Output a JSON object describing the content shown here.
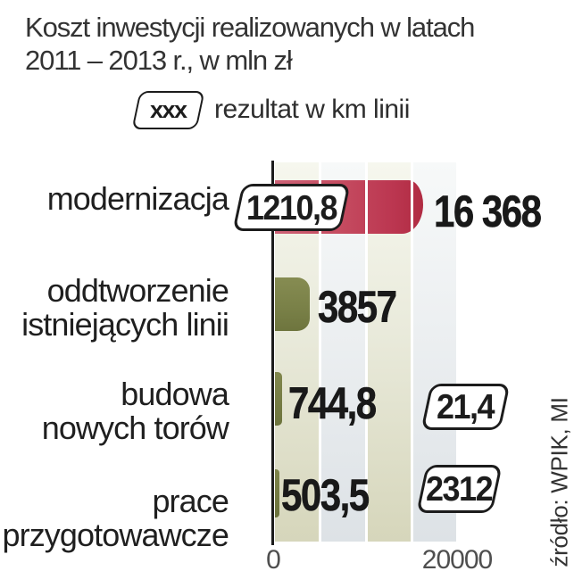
{
  "title": {
    "line1": "Koszt inwestycji realizowanych w latach",
    "line2": "2011 – 2013 r., w mln zł"
  },
  "legend": {
    "box_label": "xxx",
    "label": "rezultat w km linii"
  },
  "source": "źródło: WPIK, MI",
  "chart_data": {
    "type": "bar",
    "orientation": "horizontal",
    "title": "Koszt inwestycji realizowanych w latach 2011 – 2013 r., w mln zł",
    "value_unit": "mln zł",
    "secondary_unit": "km linii",
    "xlim": [
      0,
      20000
    ],
    "x_tick_labels": [
      "0",
      "20000"
    ],
    "gridlines": "vertical bands every 5000",
    "legend_note": "boxed values = rezultat w km linii",
    "rows": [
      {
        "category": "modernizacja",
        "label_line1": "modernizacja",
        "label_line2": "",
        "value": 16368,
        "value_label": "16 368",
        "km_result": "1210,8",
        "bar_color": "red"
      },
      {
        "category": "oddtworzenie istniejących linii",
        "label_line1": "oddtworzenie",
        "label_line2": "istniejących linii",
        "value": 3857,
        "value_label": "3857",
        "km_result": "",
        "bar_color": "olive"
      },
      {
        "category": "budowa nowych torów",
        "label_line1": "budowa",
        "label_line2": "nowych torów",
        "value": 744.8,
        "value_label": "744,8",
        "km_result": "21,4",
        "bar_color": "olive"
      },
      {
        "category": "prace przygotowawcze",
        "label_line1": "prace",
        "label_line2": "przygotowawcze",
        "value": 503.5,
        "value_label": "503,5",
        "km_result": "2312",
        "bar_color": "olive"
      }
    ],
    "colors": {
      "bar_red_light": "#cd6276",
      "bar_red_dark": "#b02b42",
      "bar_olive": "#7a8148",
      "band_khaki": "#d6d6bb",
      "band_gray": "#dde2e6",
      "axis": "#1c1c1c",
      "text": "#1d1d1d"
    }
  }
}
